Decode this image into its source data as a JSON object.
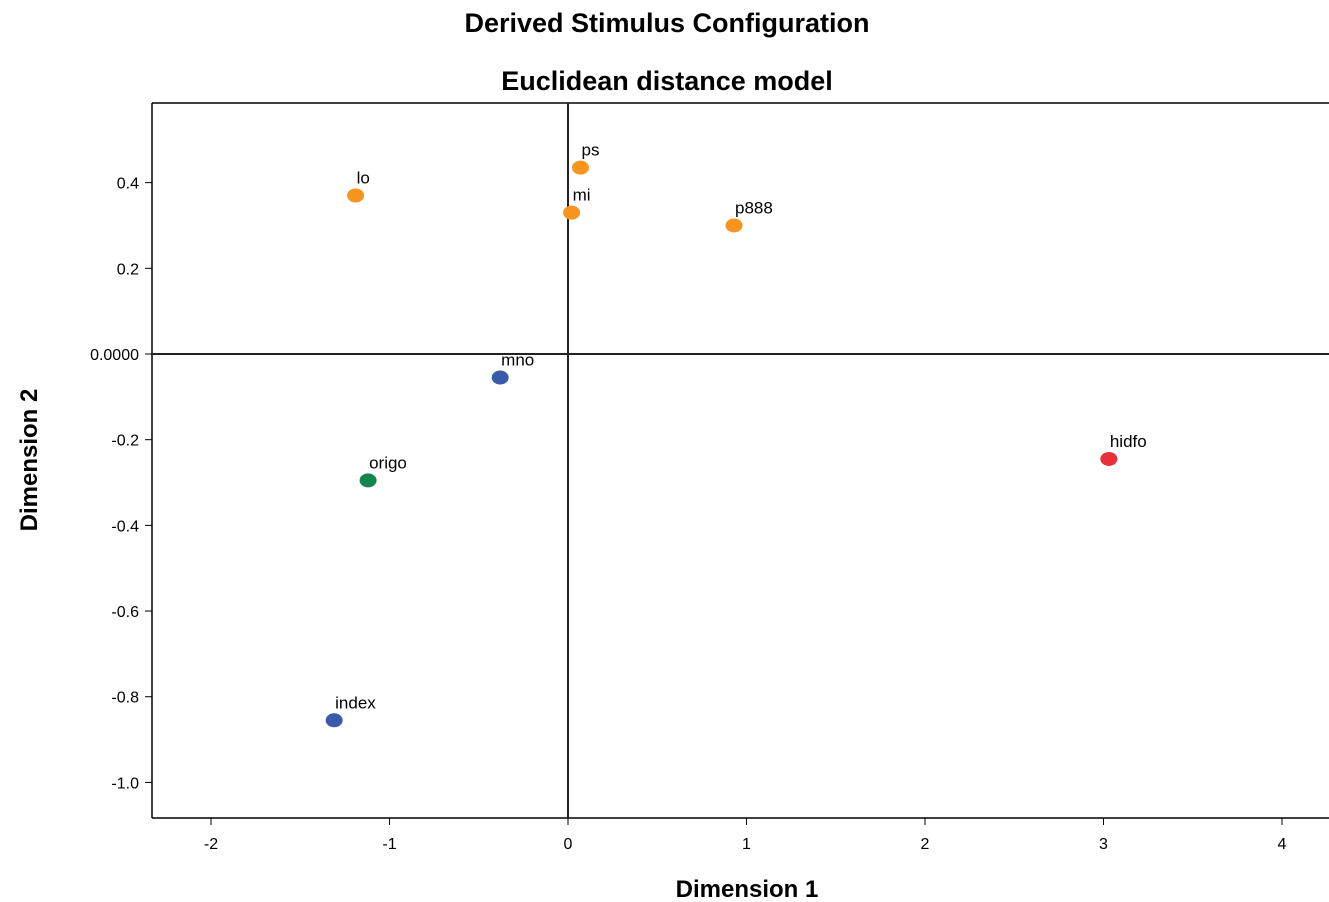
{
  "chart_data": {
    "type": "scatter",
    "title": "Derived Stimulus Configuration",
    "subtitle": "Euclidean distance model",
    "xlabel": "Dimension 1",
    "ylabel": "Dimension 2",
    "xlim": [
      -2.3,
      4.3
    ],
    "ylim": [
      -1.09,
      0.58
    ],
    "x_ticks": [
      {
        "value": -2,
        "label": "-2"
      },
      {
        "value": -1,
        "label": "-1"
      },
      {
        "value": 0,
        "label": "0"
      },
      {
        "value": 1,
        "label": "1"
      },
      {
        "value": 2,
        "label": "2"
      },
      {
        "value": 3,
        "label": "3"
      },
      {
        "value": 4,
        "label": "4"
      }
    ],
    "y_ticks": [
      {
        "value": 0.4,
        "label": "0.4"
      },
      {
        "value": 0.2,
        "label": "0.2"
      },
      {
        "value": 0,
        "label": "0.0000"
      },
      {
        "value": -0.2,
        "label": "-0.2"
      },
      {
        "value": -0.4,
        "label": "-0.4"
      },
      {
        "value": -0.6,
        "label": "-0.6"
      },
      {
        "value": -0.8,
        "label": "-0.8"
      },
      {
        "value": -1.0,
        "label": "-1.0"
      }
    ],
    "reference_lines": {
      "x": 0,
      "y": 0
    },
    "grid": false,
    "legend": "none",
    "points": [
      {
        "label": "lo",
        "x": -1.19,
        "y": 0.37,
        "color": "#f7941d"
      },
      {
        "label": "ps",
        "x": 0.07,
        "y": 0.435,
        "color": "#f7941d"
      },
      {
        "label": "mi",
        "x": 0.02,
        "y": 0.33,
        "color": "#f7941d"
      },
      {
        "label": "p888",
        "x": 0.93,
        "y": 0.3,
        "color": "#f7941d"
      },
      {
        "label": "mno",
        "x": -0.38,
        "y": -0.055,
        "color": "#3a5bab"
      },
      {
        "label": "origo",
        "x": -1.12,
        "y": -0.295,
        "color": "#13874b"
      },
      {
        "label": "hidfo",
        "x": 3.03,
        "y": -0.245,
        "color": "#e8303a"
      },
      {
        "label": "index",
        "x": -1.31,
        "y": -0.855,
        "color": "#3a5bab"
      }
    ]
  }
}
